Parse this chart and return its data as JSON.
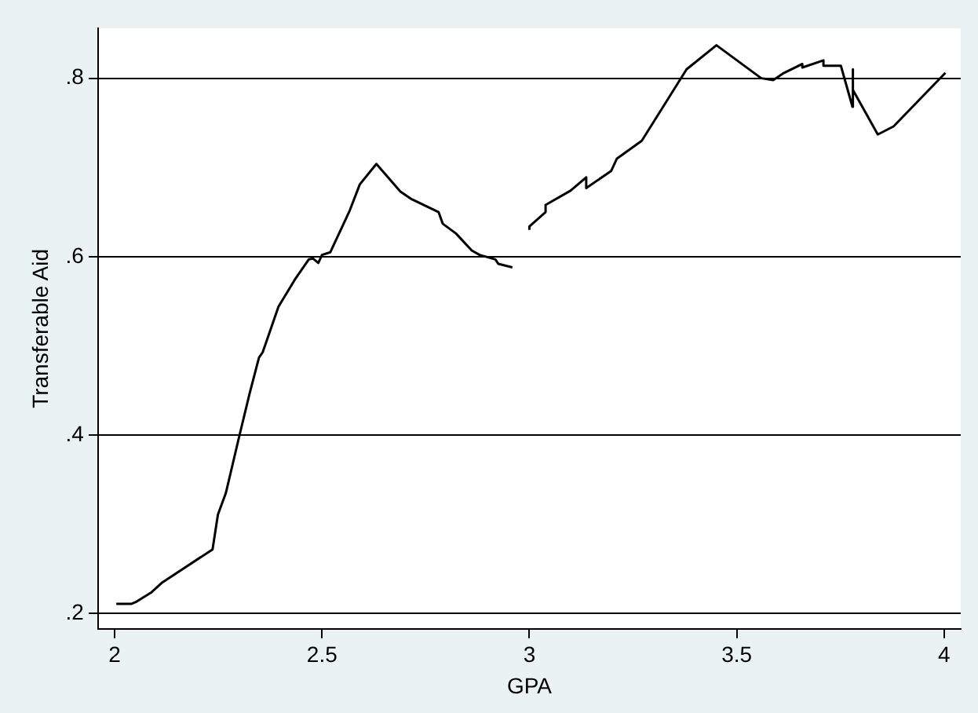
{
  "chart_data": {
    "type": "line",
    "xlabel": "GPA",
    "ylabel": "Transferable Aid",
    "xlim": [
      1.96,
      4.04
    ],
    "ylim": [
      0.183,
      0.856
    ],
    "xticks": [
      2,
      2.5,
      3,
      3.5,
      4
    ],
    "yticks": [
      {
        "value": 0.2,
        "label": ".2"
      },
      {
        "value": 0.4,
        "label": ".4"
      },
      {
        "value": 0.6,
        "label": ".6"
      },
      {
        "value": 0.8,
        "label": ".8"
      }
    ],
    "grid": "y",
    "legend": false,
    "marker": "none",
    "line_style": "solid",
    "series": [
      {
        "color": "#000000",
        "x": [
          2.004,
          2.041,
          2.051,
          2.089,
          2.115,
          2.236,
          2.249,
          2.268,
          2.3,
          2.325,
          2.348,
          2.357,
          2.395,
          2.434,
          2.468,
          2.478,
          2.491,
          2.5,
          2.52,
          2.558,
          2.567,
          2.591,
          2.631,
          2.689,
          2.714,
          2.781,
          2.791,
          2.823,
          2.861,
          2.88,
          2.918,
          2.925,
          2.959,
          2.98,
          3.0,
          3.0,
          3.039,
          3.039,
          3.099,
          3.137,
          3.137,
          3.197,
          3.211,
          3.271,
          3.379,
          3.451,
          3.559,
          3.588,
          3.614,
          3.658,
          3.658,
          3.709,
          3.709,
          3.751,
          3.779,
          3.779,
          3.781,
          3.84,
          3.878,
          4.003
        ],
        "values": [
          0.211,
          0.211,
          0.213,
          0.224,
          0.235,
          0.272,
          0.311,
          0.335,
          0.398,
          0.446,
          0.487,
          0.493,
          0.544,
          0.574,
          0.597,
          0.598,
          0.593,
          0.602,
          0.605,
          0.643,
          0.652,
          0.681,
          0.704,
          0.673,
          0.665,
          0.65,
          0.637,
          0.626,
          0.607,
          0.602,
          0.597,
          0.592,
          0.588,
          null,
          0.63,
          0.634,
          0.65,
          0.658,
          0.674,
          0.689,
          0.677,
          0.696,
          0.71,
          0.73,
          0.81,
          0.837,
          0.8,
          0.798,
          0.806,
          0.816,
          0.812,
          0.82,
          0.814,
          0.814,
          0.768,
          0.81,
          0.787,
          0.737,
          0.746,
          0.806
        ]
      }
    ]
  }
}
